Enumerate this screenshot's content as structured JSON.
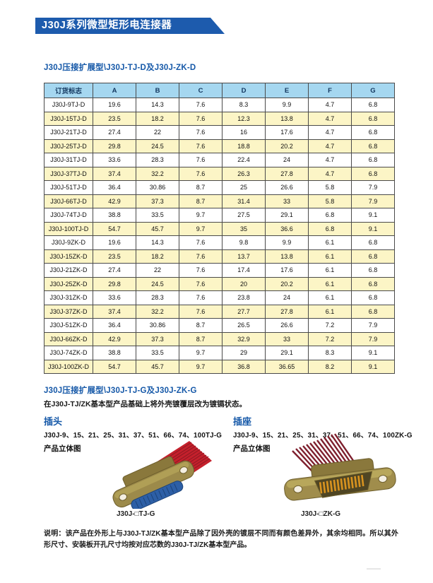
{
  "banner": {
    "title": "J30J系列微型矩形电连接器"
  },
  "section1": {
    "title": "J30J压接扩展型\\J30J-TJ-D及J30J-ZK-D",
    "table": {
      "headers": [
        "订货标志",
        "A",
        "B",
        "C",
        "D",
        "E",
        "F",
        "G"
      ],
      "rows": [
        [
          "J30J-9TJ-D",
          "19.6",
          "14.3",
          "7.6",
          "8.3",
          "9.9",
          "4.7",
          "6.8"
        ],
        [
          "J30J-15TJ-D",
          "23.5",
          "18.2",
          "7.6",
          "12.3",
          "13.8",
          "4.7",
          "6.8"
        ],
        [
          "J30J-21TJ-D",
          "27.4",
          "22",
          "7.6",
          "16",
          "17.6",
          "4.7",
          "6.8"
        ],
        [
          "J30J-25TJ-D",
          "29.8",
          "24.5",
          "7.6",
          "18.8",
          "20.2",
          "4.7",
          "6.8"
        ],
        [
          "J30J-31TJ-D",
          "33.6",
          "28.3",
          "7.6",
          "22.4",
          "24",
          "4.7",
          "6.8"
        ],
        [
          "J30J-37TJ-D",
          "37.4",
          "32.2",
          "7.6",
          "26.3",
          "27.8",
          "4.7",
          "6.8"
        ],
        [
          "J30J-51TJ-D",
          "36.4",
          "30.86",
          "8.7",
          "25",
          "26.6",
          "5.8",
          "7.9"
        ],
        [
          "J30J-66TJ-D",
          "42.9",
          "37.3",
          "8.7",
          "31.4",
          "33",
          "5.8",
          "7.9"
        ],
        [
          "J30J-74TJ-D",
          "38.8",
          "33.5",
          "9.7",
          "27.5",
          "29.1",
          "6.8",
          "9.1"
        ],
        [
          "J30J-100TJ-D",
          "54.7",
          "45.7",
          "9.7",
          "35",
          "36.6",
          "6.8",
          "9.1"
        ],
        [
          "J30J-9ZK-D",
          "19.6",
          "14.3",
          "7.6",
          "9.8",
          "9.9",
          "6.1",
          "6.8"
        ],
        [
          "J30J-15ZK-D",
          "23.5",
          "18.2",
          "7.6",
          "13.7",
          "13.8",
          "6.1",
          "6.8"
        ],
        [
          "J30J-21ZK-D",
          "27.4",
          "22",
          "7.6",
          "17.4",
          "17.6",
          "6.1",
          "6.8"
        ],
        [
          "J30J-25ZK-D",
          "29.8",
          "24.5",
          "7.6",
          "20",
          "20.2",
          "6.1",
          "6.8"
        ],
        [
          "J30J-31ZK-D",
          "33.6",
          "28.3",
          "7.6",
          "23.8",
          "24",
          "6.1",
          "6.8"
        ],
        [
          "J30J-37ZK-D",
          "37.4",
          "32.2",
          "7.6",
          "27.7",
          "27.8",
          "6.1",
          "6.8"
        ],
        [
          "J30J-51ZK-D",
          "36.4",
          "30.86",
          "8.7",
          "26.5",
          "26.6",
          "7.2",
          "7.9"
        ],
        [
          "J30J-66ZK-D",
          "42.9",
          "37.3",
          "8.7",
          "32.9",
          "33",
          "7.2",
          "7.9"
        ],
        [
          "J30J-74ZK-D",
          "38.8",
          "33.5",
          "9.7",
          "29",
          "29.1",
          "8.3",
          "9.1"
        ],
        [
          "J30J-100ZK-D",
          "54.7",
          "45.7",
          "9.7",
          "36.8",
          "36.65",
          "8.2",
          "9.1"
        ]
      ]
    }
  },
  "section2": {
    "title": "J30J压接扩展型\\J30J-TJ-G及J30J-ZK-G",
    "intro": "在J30J-TJ/ZK基本型产品基础上将外壳镀覆层改为镀镉状态。",
    "plug": {
      "heading": "插头",
      "models": "J30J-9、15、21、25、31、37、51、66、74、100TJ-G",
      "view_label": "产品立体图",
      "caption": "J30J-□TJ-G"
    },
    "socket": {
      "heading": "插座",
      "models": "J30J-9、15、21、25、31、37、51、66、74、100ZK-G",
      "view_label": "产品立体图",
      "caption": "J30J-□ZK-G"
    },
    "note": "说明：该产品在外形上与J30J-TJ/ZK基本型产品除了因外壳的镀层不同而有颜色差异外，其余均相同。所以其外形尺寸、安装板开孔尺寸均按对应芯数的J30J-TJ/ZK基本型产品。"
  },
  "colors": {
    "banner_blue": "#1d5bad",
    "title_blue": "#1558a8",
    "table_header_bg": "#a5d7f0",
    "table_alt_row": "#fcf5c6",
    "ribbon_red": "#c5202c",
    "body_olive": "#9c8a4a",
    "insert_blue": "#2d5fa6",
    "pin_orange": "#d8931f"
  }
}
